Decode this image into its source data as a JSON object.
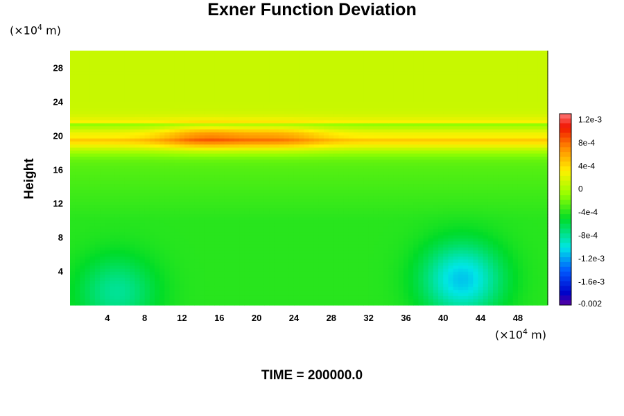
{
  "title": "Exner Function Deviation",
  "y_unit": {
    "prefix": "(×10",
    "exp": "4",
    "suffix": " m)"
  },
  "x_unit": {
    "prefix": "(×10",
    "exp": "4",
    "suffix": " m)"
  },
  "ylabel": "Height",
  "footer": "TIME = 200000.0",
  "chart_data": {
    "type": "heatmap",
    "title": "Exner Function Deviation",
    "xlabel": "",
    "ylabel": "Height",
    "x_unit": "(×10^4 m)",
    "y_unit": "(×10^4 m)",
    "xlim": [
      0,
      51.2
    ],
    "ylim": [
      0,
      30
    ],
    "x_ticks": [
      4,
      8,
      12,
      16,
      20,
      24,
      28,
      32,
      36,
      40,
      44,
      48
    ],
    "y_ticks": [
      4,
      8,
      12,
      16,
      20,
      24,
      28
    ],
    "colorbar": {
      "min": -0.002,
      "max": 0.0013,
      "tick_values": [
        0.0012,
        0.0008,
        0.0004,
        0,
        -0.0004,
        -0.0008,
        -0.0012,
        -0.0016,
        -0.002
      ],
      "tick_labels": [
        "1.2e-3",
        "8e-4",
        "4e-4",
        "0",
        "-4e-4",
        "-8e-4",
        "-1.2e-3",
        "-1.6e-3",
        "-0.002"
      ]
    },
    "features": [
      {
        "kind": "band",
        "y_center": 19.8,
        "y_halfwidth": 1.6,
        "value": 0.0007
      },
      {
        "kind": "maximum",
        "x": 14.5,
        "y": 19.8,
        "value": 0.0011
      },
      {
        "kind": "maximum",
        "x": 22.5,
        "y": 19.8,
        "value": 0.001
      },
      {
        "kind": "minimum",
        "x": 5.0,
        "y": 1.5,
        "value": -0.0008
      },
      {
        "kind": "minimum",
        "x": 42.0,
        "y": 3.0,
        "value": -0.0011
      }
    ],
    "background_upper": 0.0001,
    "background_lower": -0.0004,
    "footer": "TIME = 200000.0"
  }
}
